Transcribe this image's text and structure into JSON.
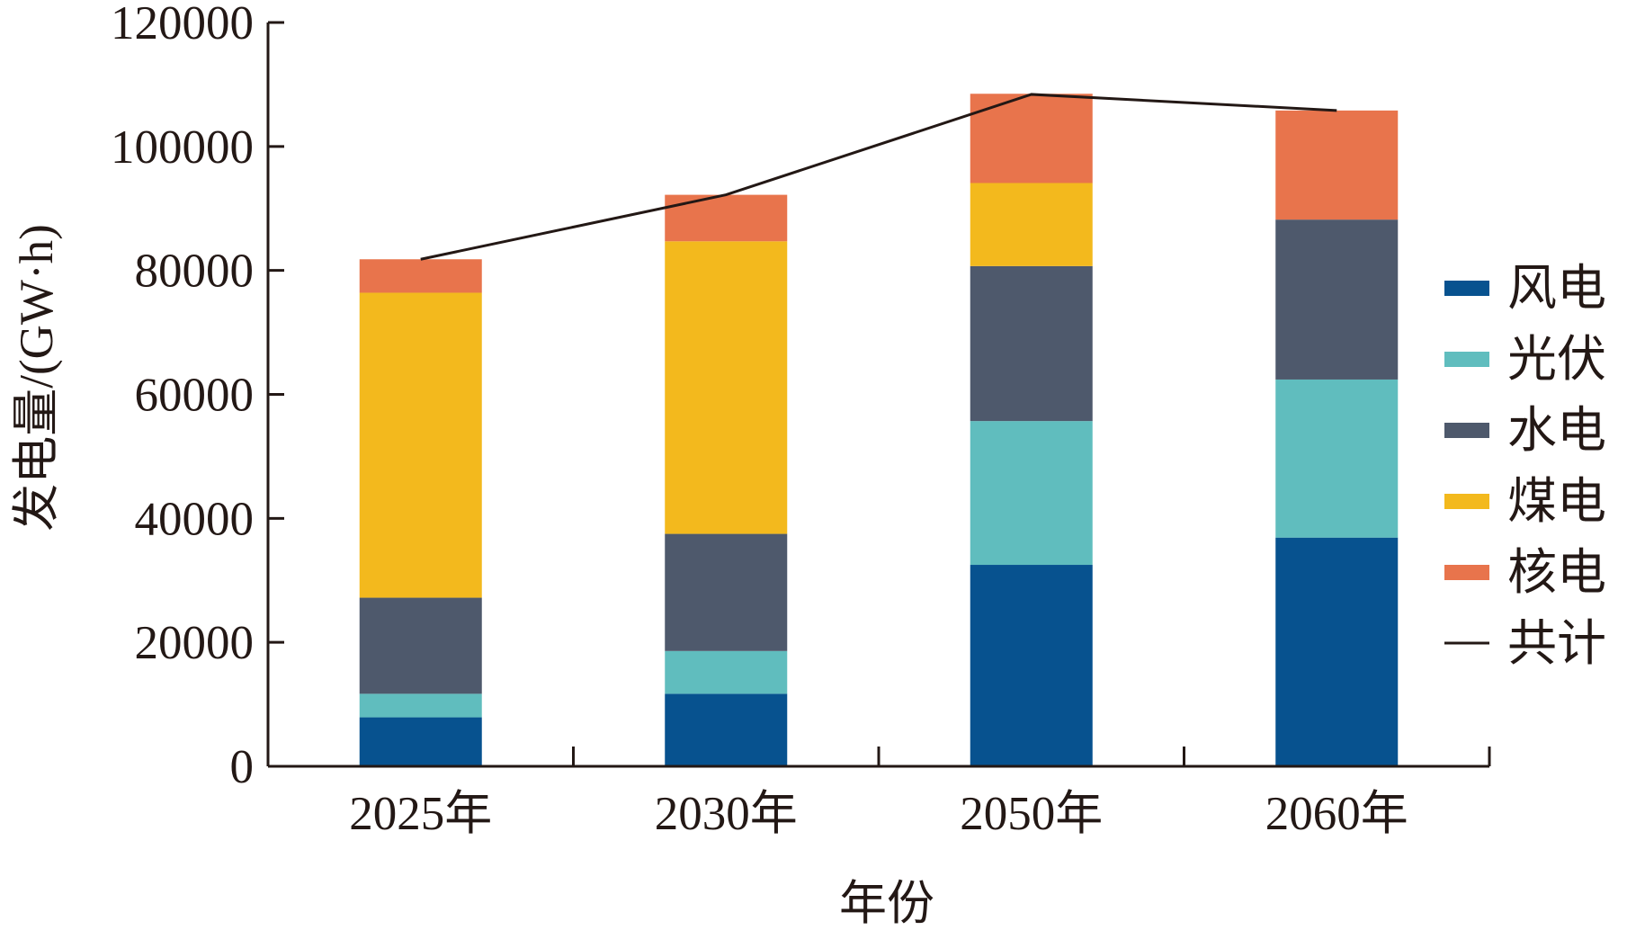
{
  "chart_data": {
    "type": "bar",
    "stacked": true,
    "title": "",
    "xlabel": "年份",
    "ylabel": "发电量/(GW·h)",
    "ylim": [
      0,
      120000
    ],
    "yticks": [
      0,
      20000,
      40000,
      60000,
      80000,
      100000,
      120000
    ],
    "categories": [
      "2025年",
      "2030年",
      "2050年",
      "2060年"
    ],
    "series": [
      {
        "name": "风电",
        "color": "#07528F",
        "values": [
          7900,
          11700,
          32500,
          36900
        ]
      },
      {
        "name": "光伏",
        "color": "#60BDBE",
        "values": [
          3800,
          6900,
          23200,
          25500
        ]
      },
      {
        "name": "水电",
        "color": "#4E596C",
        "values": [
          15500,
          18900,
          25000,
          25800
        ]
      },
      {
        "name": "煤电",
        "color": "#F3B91D",
        "values": [
          49200,
          47200,
          13400,
          0
        ]
      },
      {
        "name": "核电",
        "color": "#E8744C",
        "values": [
          5400,
          7500,
          14400,
          17600
        ]
      }
    ],
    "line": {
      "name": "共计",
      "color": "#231815",
      "values": [
        81800,
        92200,
        108400,
        105800
      ]
    },
    "legend_position": "right",
    "grid": false
  }
}
